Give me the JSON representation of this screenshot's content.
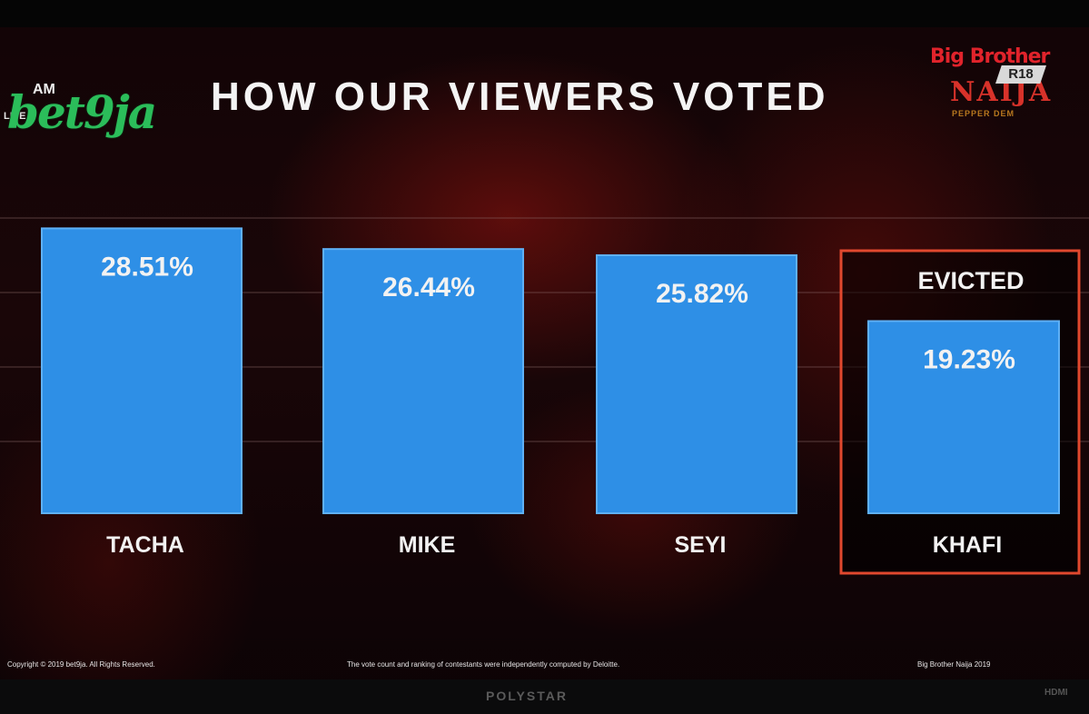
{
  "header": {
    "logo_left_text": "bet9ja",
    "logo_left_live": "LIVE",
    "logo_left_am": "AM",
    "title": "HOW OUR VIEWERS VOTED",
    "logo_right_top": "Big Brother",
    "logo_right_main": "NAIJA",
    "logo_right_sub": "PEPPER DEM",
    "rating": "R18"
  },
  "highlight": {
    "label": "EVICTED",
    "category": "KHAFI",
    "color": "#e0482e"
  },
  "colors": {
    "bar": "#2e8fe6",
    "bar_border": "#5fb0f5",
    "label": "#f2f2f2",
    "grid": "#8a6a6a"
  },
  "chart_data": {
    "type": "bar",
    "categories": [
      "TACHA",
      "MIKE",
      "SEYI",
      "KHAFI"
    ],
    "values": [
      28.51,
      26.44,
      25.82,
      19.23
    ],
    "value_labels": [
      "28.51%",
      "26.44%",
      "25.82%",
      "19.23%"
    ],
    "title": "HOW OUR VIEWERS VOTED",
    "xlabel": "",
    "ylabel": "",
    "ylim": [
      0,
      29
    ],
    "grid": true,
    "legend": "none"
  },
  "footer": {
    "left": "Copyright © 2019 bet9ja. All Rights Reserved.",
    "center": "The vote count and ranking of contestants were independently computed by Deloitte.",
    "right": "Big Brother Naija 2019"
  },
  "tv": {
    "brand": "POLYSTAR",
    "corner": "HDMI"
  }
}
